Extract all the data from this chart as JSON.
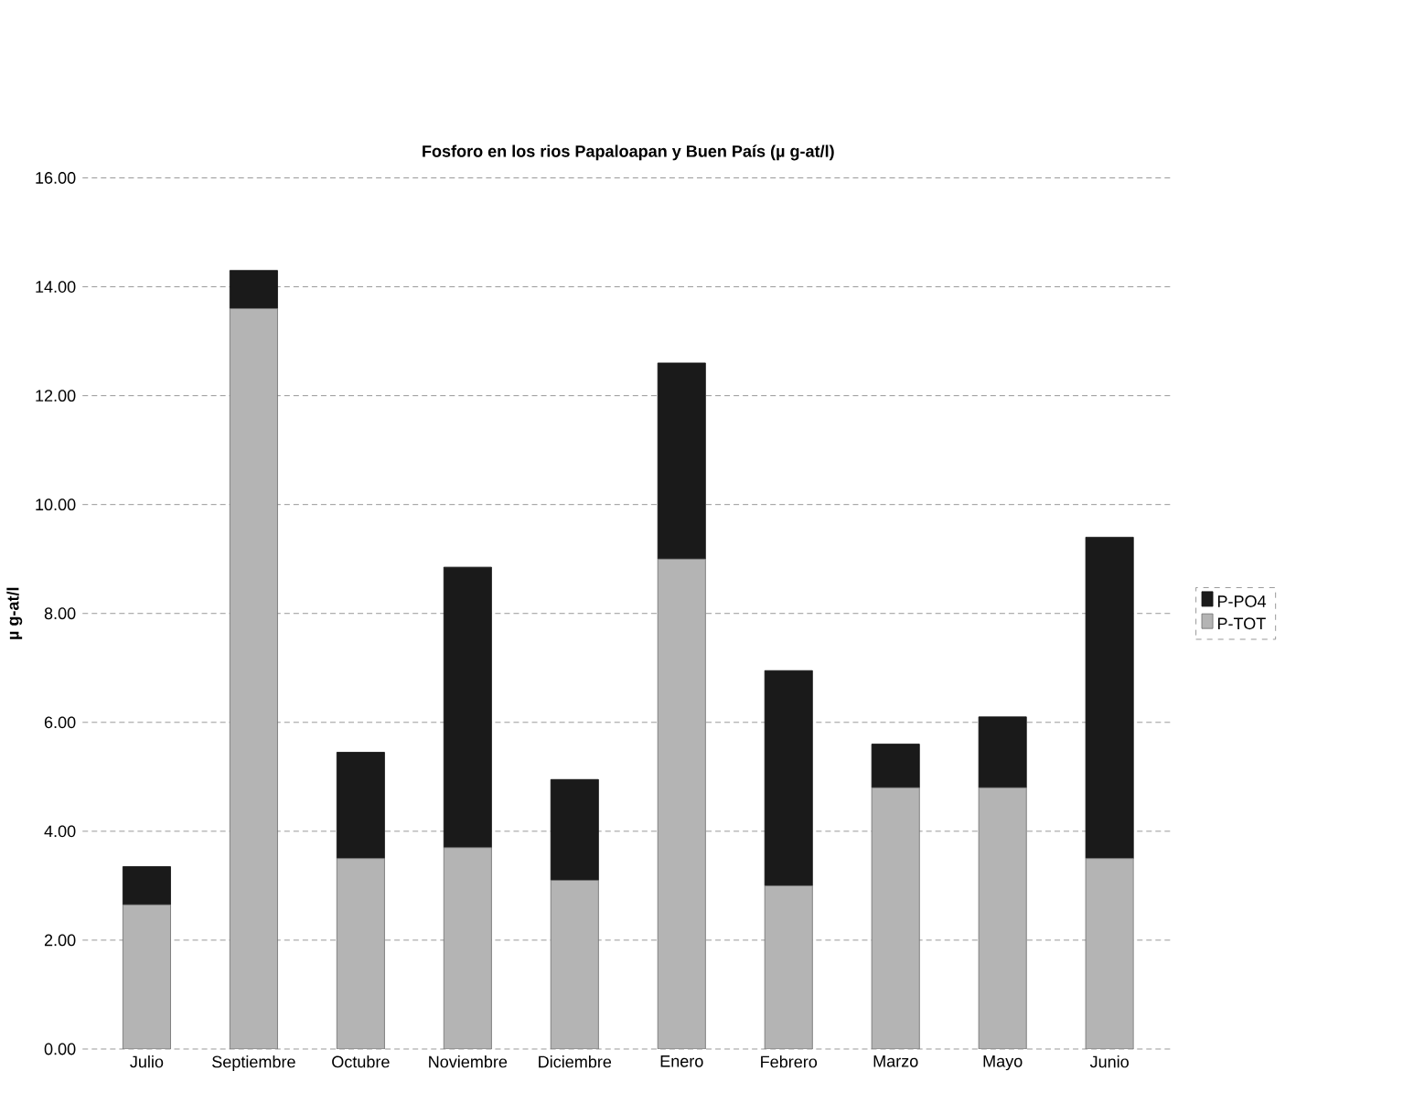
{
  "chart_data": {
    "type": "bar",
    "stacked": true,
    "title": "Fosforo en los rios Papaloapan y Buen País (µ g-at/l)",
    "ylabel": "µ g-at/l",
    "categories": [
      "Julio",
      "Septiembre",
      "Octubre",
      "Noviembre",
      "Diciembre",
      "Enero",
      "Febrero",
      "Marzo",
      "Mayo",
      "Junio"
    ],
    "series": [
      {
        "name": "P-TOT",
        "color": "#b4b4b4",
        "values": [
          2.65,
          13.6,
          3.5,
          3.7,
          3.1,
          9.0,
          3.0,
          4.8,
          4.8,
          3.5
        ]
      },
      {
        "name": "P-PO4",
        "color": "#1a1a1a",
        "values": [
          0.7,
          0.7,
          1.95,
          5.15,
          1.85,
          3.6,
          3.95,
          0.8,
          1.3,
          5.9
        ]
      }
    ],
    "ylim": [
      0,
      16
    ],
    "yticks": [
      {
        "value": 0,
        "label": "0.00"
      },
      {
        "value": 2,
        "label": "2.00"
      },
      {
        "value": 4,
        "label": "4.00"
      },
      {
        "value": 6,
        "label": "6.00"
      },
      {
        "value": 8,
        "label": "8.00"
      },
      {
        "value": 10,
        "label": "10.00"
      },
      {
        "value": 12,
        "label": "12.00"
      },
      {
        "value": 14,
        "label": "14.00"
      },
      {
        "value": 16,
        "label": "16.00"
      }
    ],
    "grid": "y",
    "legend": "right"
  }
}
